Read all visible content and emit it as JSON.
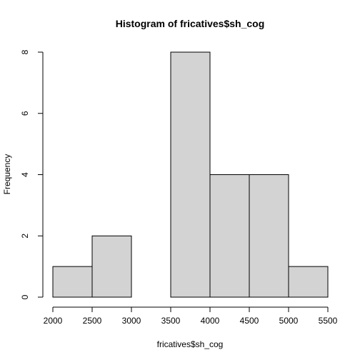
{
  "chart_data": {
    "type": "bar",
    "title": "Histogram of fricatives$sh_cog",
    "xlabel": "fricatives$sh_cog",
    "ylabel": "Frequency",
    "bins": [
      {
        "from": 2000,
        "to": 2500,
        "count": 1
      },
      {
        "from": 2500,
        "to": 3000,
        "count": 2
      },
      {
        "from": 3000,
        "to": 3500,
        "count": 0
      },
      {
        "from": 3500,
        "to": 4000,
        "count": 8
      },
      {
        "from": 4000,
        "to": 4500,
        "count": 4
      },
      {
        "from": 4500,
        "to": 5000,
        "count": 4
      },
      {
        "from": 5000,
        "to": 5500,
        "count": 1
      }
    ],
    "xlim": [
      2000,
      5500
    ],
    "ylim": [
      0,
      8
    ],
    "x_ticks": [
      "2000",
      "2500",
      "3000",
      "3500",
      "4000",
      "4500",
      "5000",
      "5500"
    ],
    "y_ticks": [
      "0",
      "2",
      "4",
      "6",
      "8"
    ],
    "grid": false,
    "bar_fill": "#d3d3d3",
    "bar_stroke": "#000000"
  }
}
